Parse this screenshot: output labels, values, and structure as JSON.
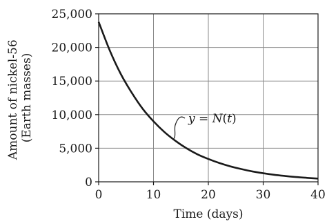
{
  "chart_data": {
    "type": "line",
    "title": "",
    "xlabel": "Time (days)",
    "ylabel_lines": [
      "Amount of nickel-56",
      "(Earth masses)"
    ],
    "xlim": [
      0,
      40
    ],
    "ylim": [
      0,
      25000
    ],
    "x_ticks": [
      0,
      10,
      20,
      30,
      40
    ],
    "x_tick_labels": [
      "0",
      "10",
      "20",
      "30",
      "40"
    ],
    "y_ticks": [
      0,
      5000,
      10000,
      15000,
      20000,
      25000
    ],
    "y_tick_labels": [
      "0",
      "5,000",
      "10,000",
      "15,000",
      "20,000",
      "25,000"
    ],
    "grid": true,
    "series": [
      {
        "name": "y = N(t)",
        "x": [
          0,
          2,
          4,
          6,
          8,
          10,
          12,
          14,
          16,
          18,
          20,
          22,
          24,
          26,
          28,
          30,
          32,
          34,
          36,
          38,
          40
        ],
        "y": [
          23800,
          19600,
          16100,
          13300,
          10900,
          9000,
          7400,
          6100,
          5000,
          4100,
          3400,
          2800,
          2300,
          1900,
          1550,
          1280,
          1050,
          870,
          710,
          590,
          480
        ]
      }
    ],
    "annotations": [
      {
        "label_parts": [
          "y",
          " = ",
          "N",
          "(",
          "t",
          ")"
        ],
        "points_to": [
          13.5,
          6320
        ]
      }
    ]
  }
}
